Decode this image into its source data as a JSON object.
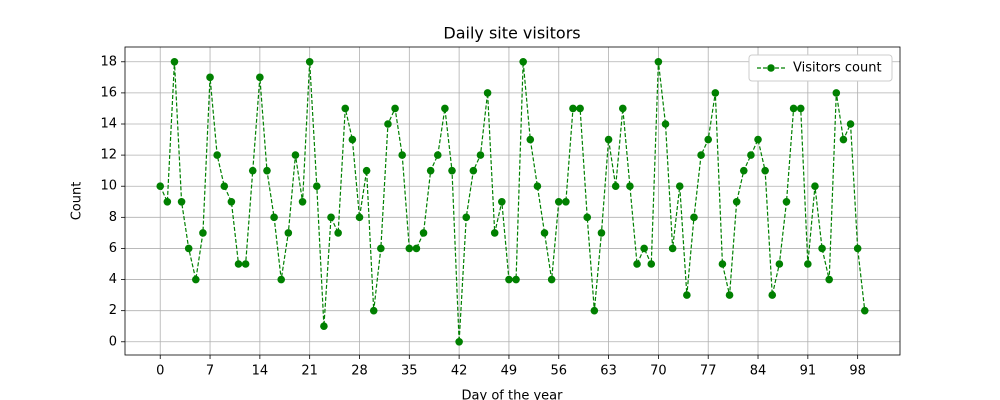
{
  "chart_data": {
    "type": "line",
    "title": "Daily site visitors",
    "x_label": "Day of the year",
    "y_label": "Count",
    "x": [
      0,
      1,
      2,
      3,
      4,
      5,
      6,
      7,
      8,
      9,
      10,
      11,
      12,
      13,
      14,
      15,
      16,
      17,
      18,
      19,
      20,
      21,
      22,
      23,
      24,
      25,
      26,
      27,
      28,
      29,
      30,
      31,
      32,
      33,
      34,
      35,
      36,
      37,
      38,
      39,
      40,
      41,
      42,
      43,
      44,
      45,
      46,
      47,
      48,
      49,
      50,
      51,
      52,
      53,
      54,
      55,
      56,
      57,
      58,
      59,
      60,
      61,
      62,
      63,
      64,
      65,
      66,
      67,
      68,
      69,
      70,
      71,
      72,
      73,
      74,
      75,
      76,
      77,
      78,
      79,
      80,
      81,
      82,
      83,
      84,
      85,
      86,
      87,
      88,
      89,
      90,
      91,
      92,
      93,
      94,
      95,
      96,
      97,
      98,
      99
    ],
    "series": [
      {
        "name": "Visitors count",
        "color": "#008000",
        "values": [
          10,
          9,
          18,
          9,
          6,
          4,
          7,
          17,
          12,
          10,
          9,
          5,
          5,
          11,
          17,
          11,
          8,
          4,
          7,
          12,
          9,
          18,
          10,
          1,
          8,
          7,
          15,
          13,
          8,
          11,
          2,
          6,
          14,
          15,
          12,
          6,
          6,
          7,
          11,
          12,
          15,
          11,
          0,
          8,
          11,
          12,
          16,
          7,
          9,
          4,
          4,
          18,
          13,
          10,
          7,
          4,
          9,
          9,
          15,
          15,
          8,
          2,
          7,
          13,
          10,
          15,
          10,
          5,
          6,
          5,
          18,
          14,
          6,
          10,
          3,
          8,
          12,
          13,
          16,
          5,
          3,
          9,
          11,
          12,
          13,
          11,
          3,
          5,
          9,
          15,
          15,
          5,
          10,
          6,
          4,
          16,
          13,
          14,
          6,
          2
        ]
      }
    ],
    "xlim": [
      -4.95,
      103.95
    ],
    "ylim": [
      -0.85,
      18.95
    ],
    "xticks": [
      0,
      7,
      14,
      21,
      28,
      35,
      42,
      49,
      56,
      63,
      70,
      77,
      84,
      91,
      98
    ],
    "yticks": [
      0,
      2,
      4,
      6,
      8,
      10,
      12,
      14,
      16,
      18
    ],
    "grid": true,
    "legend": "upper right"
  }
}
